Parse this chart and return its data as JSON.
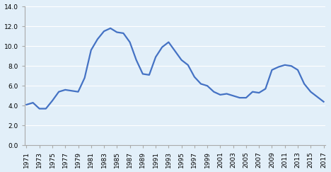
{
  "years": [
    1971,
    1972,
    1973,
    1974,
    1975,
    1976,
    1977,
    1978,
    1979,
    1980,
    1981,
    1982,
    1983,
    1984,
    1985,
    1986,
    1987,
    1988,
    1989,
    1990,
    1991,
    1992,
    1993,
    1994,
    1995,
    1996,
    1997,
    1998,
    1999,
    2000,
    2001,
    2002,
    2003,
    2004,
    2005,
    2006,
    2007,
    2008,
    2009,
    2010,
    2011,
    2012,
    2013,
    2014,
    2015,
    2016,
    2017
  ],
  "values": [
    4.1,
    4.3,
    3.7,
    3.7,
    4.5,
    5.4,
    5.6,
    5.5,
    5.4,
    6.8,
    9.6,
    10.7,
    11.5,
    11.8,
    11.4,
    11.3,
    10.4,
    8.6,
    7.2,
    7.1,
    8.9,
    9.9,
    10.4,
    9.5,
    8.6,
    8.1,
    6.9,
    6.2,
    6.0,
    5.4,
    5.1,
    5.2,
    5.0,
    4.8,
    4.8,
    5.4,
    5.3,
    5.7,
    7.6,
    7.9,
    8.1,
    8.0,
    7.6,
    6.2,
    5.4,
    4.9,
    4.4
  ],
  "line_color": "#4472C4",
  "background_color": "#E2EFF9",
  "plot_bg_color": "#DBECf8",
  "grid_color": "#FFFFFF",
  "ylim": [
    0.0,
    14.0
  ],
  "yticks": [
    0.0,
    2.0,
    4.0,
    6.0,
    8.0,
    10.0,
    12.0,
    14.0
  ],
  "xtick_step": 2,
  "line_width": 1.6,
  "font_size": 6.5
}
